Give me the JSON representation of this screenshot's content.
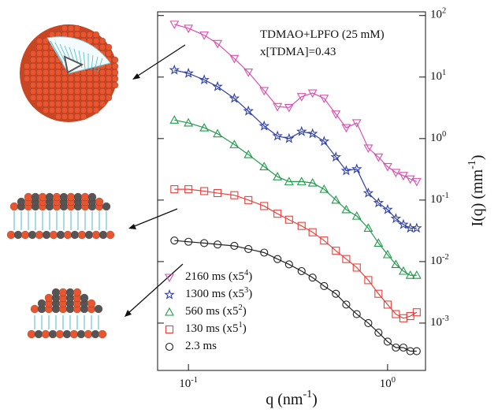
{
  "chart_data": {
    "type": "line",
    "annotations": [
      "TDMAO+LPFO (25 mM)",
      "x[TDMA]=0.43"
    ],
    "x_label": "q (nm^-1)",
    "y_label": "I(q) (mm^-1)",
    "log_x": true,
    "log_y": true,
    "x": [
      0.085,
      0.1,
      0.12,
      0.14,
      0.17,
      0.2,
      0.24,
      0.28,
      0.32,
      0.37,
      0.42,
      0.48,
      0.55,
      0.62,
      0.7,
      0.8,
      0.9,
      1.0,
      1.1,
      1.2,
      1.3,
      1.4
    ],
    "xlim": [
      0.07,
      1.55
    ],
    "xticks": [
      {
        "value": 0.1,
        "label": "10^-1"
      },
      {
        "value": 1,
        "label": "10^0"
      }
    ],
    "ylim": [
      0.00017,
      115
    ],
    "yticks": [
      {
        "value": 0.001,
        "label": "10^-3"
      },
      {
        "value": 0.01,
        "label": "10^-2"
      },
      {
        "value": 0.1,
        "label": "10^-1"
      },
      {
        "value": 1,
        "label": "10^0"
      },
      {
        "value": 10,
        "label": "10^1"
      },
      {
        "value": 100,
        "label": "10^2"
      }
    ],
    "legend": "lower left",
    "series": [
      {
        "name": "2160 ms (x5^4)",
        "color": "#d94fae",
        "marker": "triangle-down",
        "values": [
          72,
          62,
          48,
          35,
          20,
          12,
          6,
          3.3,
          3.2,
          4.8,
          5.5,
          4.5,
          2.5,
          1.5,
          1.8,
          0.7,
          0.5,
          0.35,
          0.28,
          0.25,
          0.22,
          0.2
        ]
      },
      {
        "name": "1300 ms (x5^3)",
        "color": "#2d3fa6",
        "marker": "star",
        "values": [
          13,
          11.5,
          9,
          7,
          4.5,
          2.8,
          1.6,
          1.1,
          1.0,
          1.3,
          1.2,
          0.9,
          0.5,
          0.3,
          0.32,
          0.13,
          0.09,
          0.07,
          0.05,
          0.04,
          0.035,
          0.035
        ]
      },
      {
        "name": "560 ms (x5^2)",
        "color": "#1f9a4a",
        "marker": "triangle",
        "values": [
          2.0,
          1.8,
          1.5,
          1.2,
          0.8,
          0.55,
          0.35,
          0.24,
          0.2,
          0.2,
          0.19,
          0.15,
          0.1,
          0.07,
          0.055,
          0.035,
          0.02,
          0.013,
          0.009,
          0.007,
          0.006,
          0.006
        ]
      },
      {
        "name": "130 ms (x5^1)",
        "color": "#e8413c",
        "marker": "square",
        "values": [
          0.15,
          0.15,
          0.14,
          0.13,
          0.12,
          0.1,
          0.08,
          0.06,
          0.048,
          0.038,
          0.03,
          0.022,
          0.015,
          0.011,
          0.008,
          0.005,
          0.003,
          0.002,
          0.0014,
          0.0012,
          0.0013,
          0.0015
        ]
      },
      {
        "name": "2.3 ms",
        "color": "#222222",
        "marker": "circle",
        "values": [
          0.022,
          0.021,
          0.02,
          0.019,
          0.018,
          0.016,
          0.014,
          0.011,
          0.009,
          0.007,
          0.0055,
          0.004,
          0.003,
          0.002,
          0.0014,
          0.001,
          0.0007,
          0.0005,
          0.0004,
          0.0004,
          0.00035,
          0.00035
        ]
      }
    ]
  }
}
